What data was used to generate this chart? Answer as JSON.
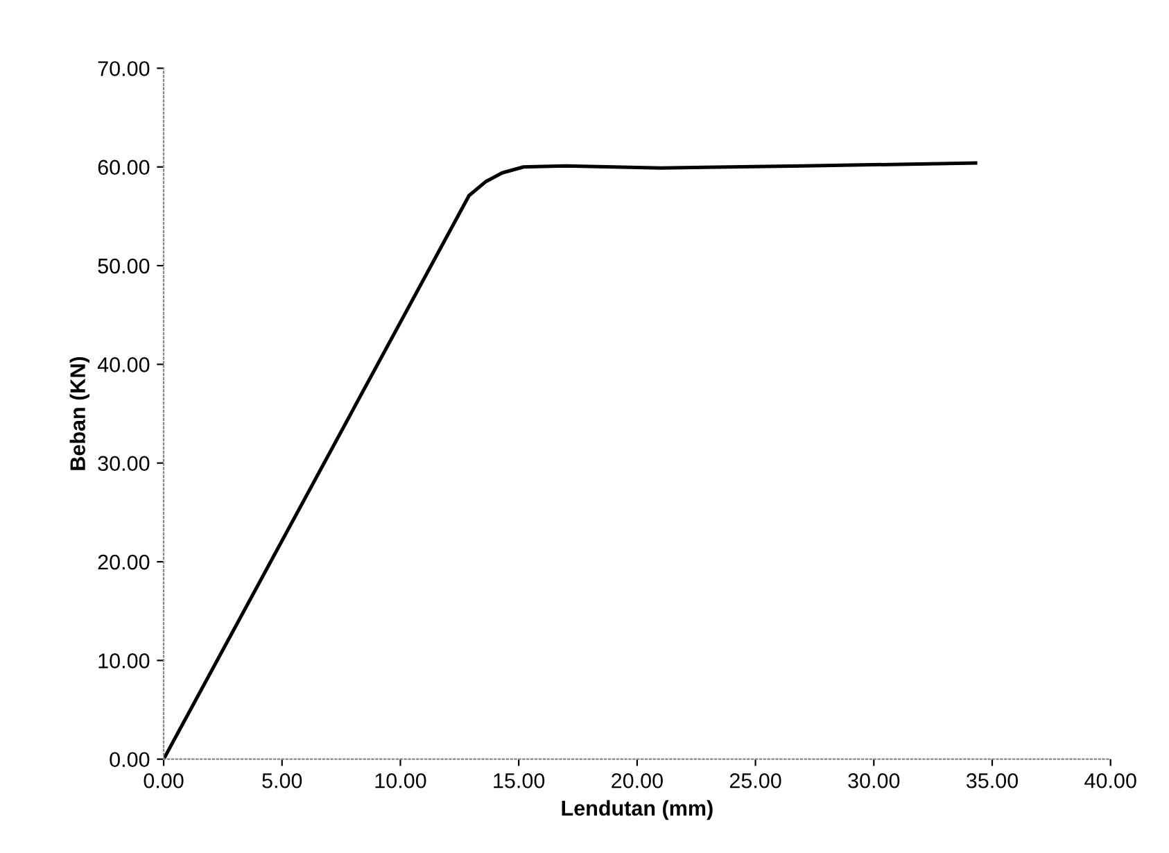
{
  "chart_data": {
    "type": "line",
    "xlabel": "Lendutan (mm)",
    "ylabel": "Beban (KN)",
    "series": [
      {
        "color": "#000000",
        "x": [
          0,
          12.9,
          13.6,
          14.3,
          15.2,
          17,
          21,
          27,
          34.3
        ],
        "values": [
          0,
          57.1,
          58.5,
          59.4,
          60.0,
          60.1,
          59.9,
          60.1,
          60.4
        ]
      }
    ],
    "xlim": [
      0,
      40
    ],
    "ylim": [
      0,
      70
    ],
    "xticks": [
      {
        "value": 0,
        "label": "0.00"
      },
      {
        "value": 5,
        "label": "5.00"
      },
      {
        "value": 10,
        "label": "10.00"
      },
      {
        "value": 15,
        "label": "15.00"
      },
      {
        "value": 20,
        "label": "20.00"
      },
      {
        "value": 25,
        "label": "25.00"
      },
      {
        "value": 30,
        "label": "30.00"
      },
      {
        "value": 35,
        "label": "35.00"
      },
      {
        "value": 40,
        "label": "40.00"
      }
    ],
    "yticks": [
      {
        "value": 0,
        "label": "0.00"
      },
      {
        "value": 10,
        "label": "10.00"
      },
      {
        "value": 20,
        "label": "20.00"
      },
      {
        "value": 30,
        "label": "30.00"
      },
      {
        "value": 40,
        "label": "40.00"
      },
      {
        "value": 50,
        "label": "50.00"
      },
      {
        "value": 60,
        "label": "60.00"
      },
      {
        "value": 70,
        "label": "70.00"
      }
    ],
    "grid": false,
    "legend": false,
    "marker": "none",
    "line_style": "solid"
  }
}
